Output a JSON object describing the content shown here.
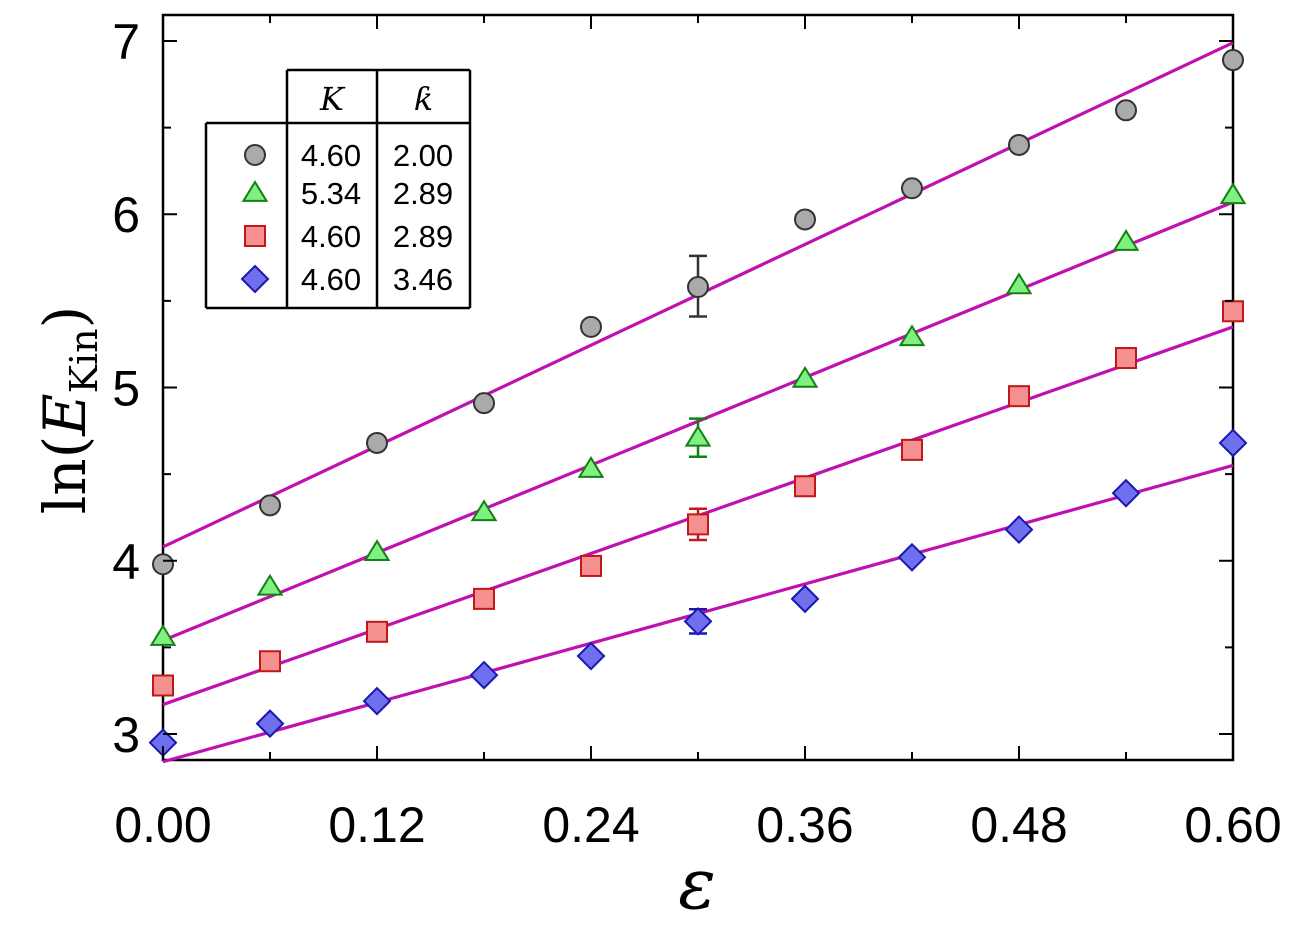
{
  "chart_data": {
    "type": "scatter",
    "xlabel": "ε",
    "ylabel_prefix": "ln(",
    "ylabel_symbol": "E",
    "ylabel_subscript": "Kin",
    "ylabel_suffix": ")",
    "xlim": [
      0,
      0.6
    ],
    "ylim": [
      2.85,
      7.15
    ],
    "x_ticks": [
      "0.00",
      "0.12",
      "0.24",
      "0.36",
      "0.48",
      "0.60"
    ],
    "y_ticks": [
      "3",
      "4",
      "5",
      "6",
      "7"
    ],
    "x": [
      0.0,
      0.06,
      0.12,
      0.18,
      0.24,
      0.3,
      0.36,
      0.42,
      0.48,
      0.54,
      0.6
    ],
    "legend": {
      "headers": [
        "K",
        "ƙ"
      ],
      "placement": "top-left"
    },
    "series": [
      {
        "marker": "circle",
        "fill": "#aaaaaa",
        "stroke": "#333333",
        "K": "4.60",
        "kbar": "2.00",
        "values": [
          3.98,
          4.32,
          4.68,
          4.91,
          5.35,
          5.58,
          5.97,
          6.15,
          6.4,
          6.6,
          6.89
        ],
        "fit": [
          4.08,
          6.99
        ],
        "error_bar": {
          "x": 0.3,
          "low": 5.41,
          "high": 5.76,
          "color": "#333333"
        }
      },
      {
        "marker": "triangle",
        "fill": "#80f080",
        "stroke": "#138013",
        "K": "5.34",
        "kbar": "2.89",
        "values": [
          3.56,
          3.85,
          4.05,
          4.28,
          4.53,
          4.71,
          5.05,
          5.29,
          5.59,
          5.84,
          6.11
        ],
        "fit": [
          3.54,
          6.07
        ],
        "error_bar": {
          "x": 0.3,
          "low": 4.6,
          "high": 4.82,
          "color": "#138013"
        }
      },
      {
        "marker": "square",
        "fill": "#f59090",
        "stroke": "#c01818",
        "K": "4.60",
        "kbar": "2.89",
        "values": [
          3.28,
          3.42,
          3.59,
          3.78,
          3.97,
          4.21,
          4.43,
          4.64,
          4.95,
          5.17,
          5.44
        ],
        "fit": [
          3.17,
          5.35
        ],
        "error_bar": {
          "x": 0.3,
          "low": 4.12,
          "high": 4.3,
          "color": "#c01818"
        }
      },
      {
        "marker": "diamond",
        "fill": "#7070ee",
        "stroke": "#1818b0",
        "K": "4.60",
        "kbar": "3.46",
        "values": [
          2.95,
          3.06,
          3.19,
          3.34,
          3.45,
          3.65,
          3.78,
          4.02,
          4.18,
          4.39,
          4.68
        ],
        "fit": [
          2.84,
          4.55
        ],
        "error_bar": {
          "x": 0.3,
          "low": 3.58,
          "high": 3.72,
          "color": "#1818b0"
        }
      }
    ],
    "fit_color": "#c010b0"
  }
}
